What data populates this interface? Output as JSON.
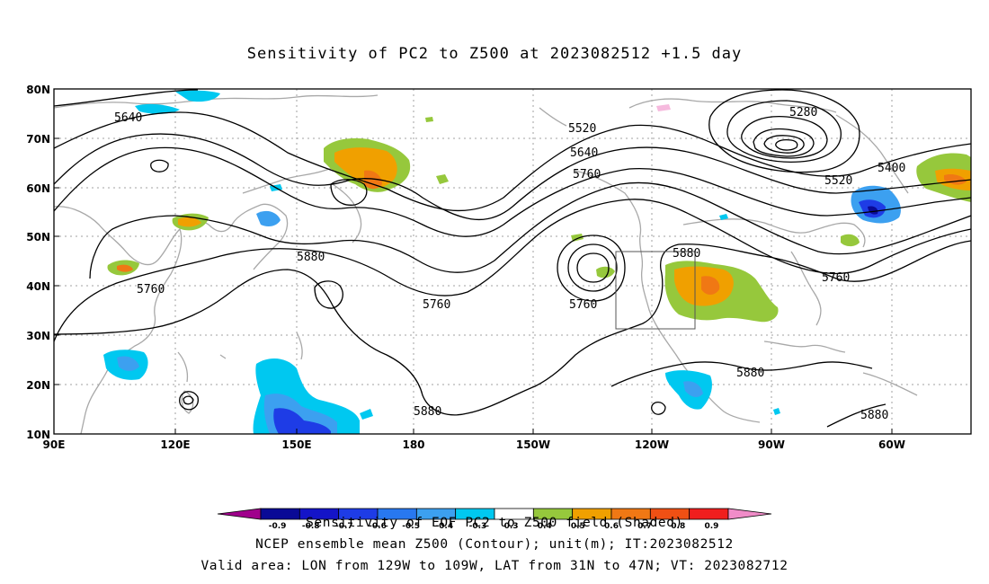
{
  "title": "Sensitivity of PC2 to Z500 at 2023082512 +1.5 day",
  "lat_ticks": [
    "80N",
    "70N",
    "60N",
    "50N",
    "40N",
    "30N",
    "20N",
    "10N"
  ],
  "lon_ticks": [
    "90E",
    "120E",
    "150E",
    "180",
    "150W",
    "120W",
    "90W",
    "60W"
  ],
  "contour_labels": [
    {
      "text": "5640",
      "id": "a"
    },
    {
      "text": "5760",
      "id": "b"
    },
    {
      "text": "5880",
      "id": "c"
    },
    {
      "text": "5760",
      "id": "d"
    },
    {
      "text": "5880",
      "id": "e"
    },
    {
      "text": "5520",
      "id": "f"
    },
    {
      "text": "5640",
      "id": "g"
    },
    {
      "text": "5760",
      "id": "h"
    },
    {
      "text": "5760",
      "id": "i"
    },
    {
      "text": "5880",
      "id": "j"
    },
    {
      "text": "5280",
      "id": "k"
    },
    {
      "text": "5400",
      "id": "l"
    },
    {
      "text": "5520",
      "id": "m"
    },
    {
      "text": "5760",
      "id": "n"
    },
    {
      "text": "5880",
      "id": "o"
    },
    {
      "text": "5880",
      "id": "p"
    }
  ],
  "colorbar": {
    "colors": [
      "#a0008c",
      "#0a0a96",
      "#1414c8",
      "#1e3ce6",
      "#2878f0",
      "#3ca0f0",
      "#00c8f0",
      "#ffffff",
      "#96c83c",
      "#f0a000",
      "#f07814",
      "#f05014",
      "#f01e1e",
      "#f08cc8"
    ],
    "ticks": [
      "-0.9",
      "-0.8",
      "-0.7",
      "-0.6",
      "-0.5",
      "-0.4",
      "-0.3",
      "0.3",
      "0.4",
      "0.5",
      "0.6",
      "0.7",
      "0.8",
      "0.9"
    ]
  },
  "captions": {
    "line1": "Sensitivity of EOF PC2 to Z500 field (Shaded)",
    "line2": "NCEP ensemble mean Z500 (Contour); unit(m); IT:2023082512",
    "line3": "Valid area: LON from 129W to 109W, LAT from 31N to 47N; VT: 2023082712"
  }
}
